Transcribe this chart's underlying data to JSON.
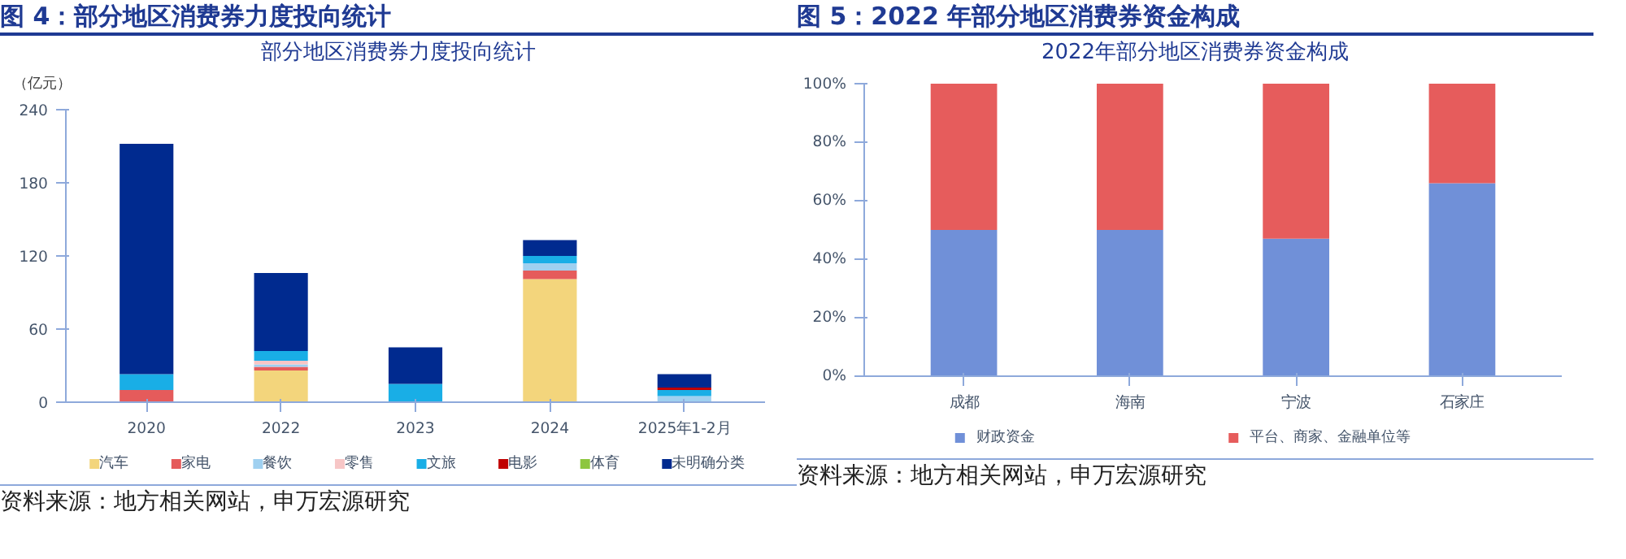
{
  "chart_data": [
    {
      "type": "bar",
      "stacked": true,
      "title": "图 4：部分地区消费券力度投向统计",
      "subtitle": "部分地区消费券力度投向统计",
      "ylabel": "（亿元）",
      "categories": [
        "2020",
        "2022",
        "2023",
        "2024",
        "2025年1-2月"
      ],
      "ylim": [
        0,
        240
      ],
      "yticks": [
        0,
        60,
        120,
        180,
        240
      ],
      "grid": false,
      "legend": "bottom",
      "series": [
        {
          "name": "汽车",
          "color": "#f3d57c",
          "values": [
            0,
            26,
            0,
            101,
            0
          ]
        },
        {
          "name": "家电",
          "color": "#e55b5b",
          "values": [
            10,
            3,
            0,
            7,
            0
          ]
        },
        {
          "name": "餐饮",
          "color": "#9fd0f0",
          "values": [
            0,
            2,
            0,
            6,
            5
          ]
        },
        {
          "name": "零售",
          "color": "#f7c6c6",
          "values": [
            0,
            3,
            0,
            0,
            0
          ]
        },
        {
          "name": "文旅",
          "color": "#19aee6",
          "values": [
            13,
            8,
            15,
            6,
            5
          ]
        },
        {
          "name": "电影",
          "color": "#c00000",
          "values": [
            0,
            0,
            0,
            0,
            2
          ]
        },
        {
          "name": "体育",
          "color": "#8dc63f",
          "values": [
            0,
            0,
            0,
            0,
            0
          ]
        },
        {
          "name": "未明确分类",
          "color": "#002a8f",
          "values": [
            189,
            64,
            30,
            13,
            11
          ]
        }
      ],
      "annotations": [
        "资料来源：地方相关网站，申万宏源研究"
      ]
    },
    {
      "type": "bar",
      "stacked": true,
      "title": "图 5：2022 年部分地区消费券资金构成",
      "subtitle": "2022年部分地区消费券资金构成",
      "categories": [
        "成都",
        "海南",
        "宁波",
        "石家庄"
      ],
      "ylim": [
        0,
        100
      ],
      "yticks": [
        {
          "value": 0,
          "label": "0%"
        },
        {
          "value": 20,
          "label": "20%"
        },
        {
          "value": 40,
          "label": "40%"
        },
        {
          "value": 60,
          "label": "60%"
        },
        {
          "value": 80,
          "label": "80%"
        },
        {
          "value": 100,
          "label": "100%"
        }
      ],
      "grid": false,
      "legend": "bottom",
      "series": [
        {
          "name": "财政资金",
          "color": "#7090d8",
          "values": [
            50,
            50,
            47,
            66
          ]
        },
        {
          "name": "平台、商家、金融单位等",
          "color": "#e65c5c",
          "values": [
            50,
            50,
            53,
            34
          ]
        }
      ],
      "annotations": [
        "资料来源：地方相关网站，申万宏源研究"
      ]
    }
  ]
}
